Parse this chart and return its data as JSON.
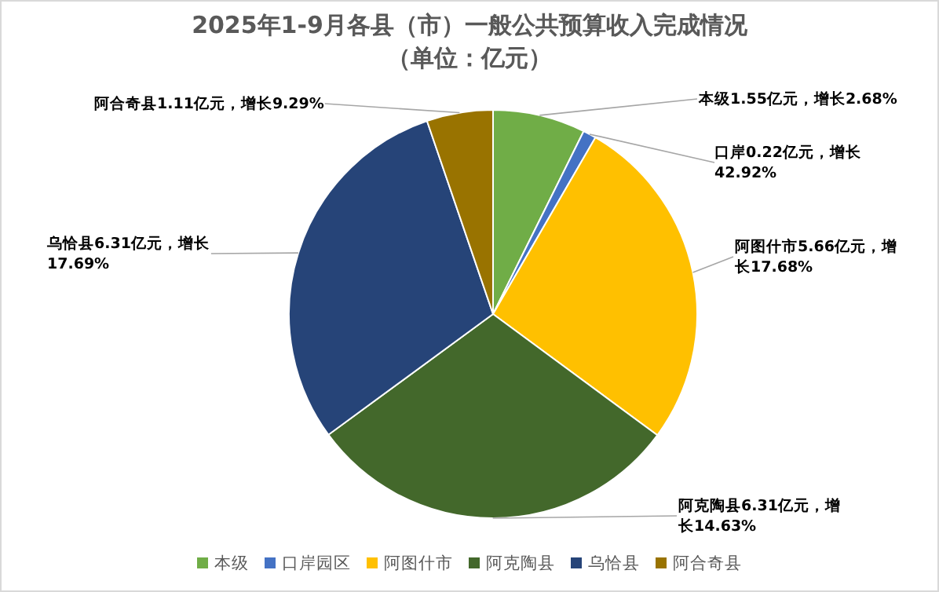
{
  "chart_data": {
    "type": "pie",
    "title": "2025年1-9月各县（市）一般公共预算收入完成情况",
    "subtitle": "（单位：亿元）",
    "categories": [
      "本级",
      "口岸园区",
      "阿图什市",
      "阿克陶县",
      "乌恰县",
      "阿合奇县"
    ],
    "values": [
      1.55,
      0.22,
      5.66,
      6.31,
      6.31,
      1.11
    ],
    "colors": [
      "#70ad47",
      "#4472c4",
      "#ffc000",
      "#43682b",
      "#264478",
      "#997300"
    ],
    "value_labels": [
      "本级1.55亿元，增长2.68%",
      "口岸0.22亿元，增长42.92%",
      "阿图什市5.66亿元，增长17.68%",
      "阿克陶县6.31亿元，增长14.63%",
      "乌恰县6.31亿元，增长17.69%",
      "阿合奇县1.11亿元，增长9.29%"
    ],
    "legend": "bottom"
  }
}
